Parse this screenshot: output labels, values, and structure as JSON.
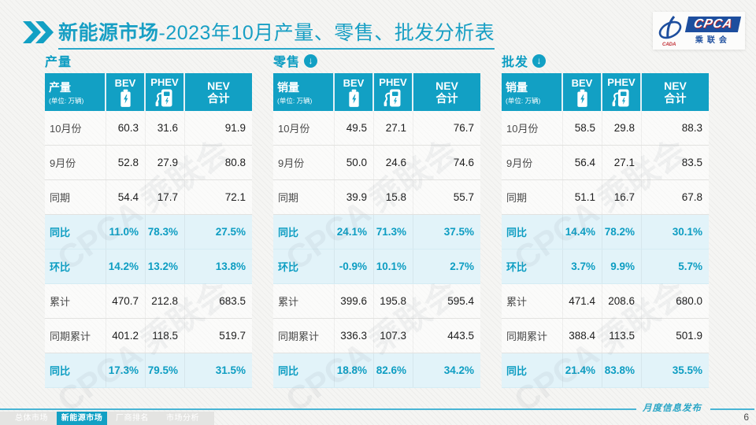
{
  "header": {
    "title_bold": "新能源市场",
    "title_rest": "-2023年10月产量、零售、批发分析表",
    "logo": {
      "cpca": "CPCA",
      "sub": "乘联会",
      "cada": "CADA"
    }
  },
  "table_columns": {
    "bev": "BEV",
    "phev": "PHEV",
    "nev_line1": "NEV",
    "nev_line2": "合计"
  },
  "unit": "(单位: 万辆)",
  "watermark": "CPCA 乘联会",
  "tables": [
    {
      "id": "production",
      "section": "产量",
      "has_arrow": false,
      "measure_label": "产量",
      "rows": [
        {
          "label": "10月份",
          "hl": false,
          "values": [
            "60.3",
            "31.6",
            "91.9"
          ]
        },
        {
          "label": "9月份",
          "hl": false,
          "values": [
            "52.8",
            "27.9",
            "80.8"
          ]
        },
        {
          "label": "同期",
          "hl": false,
          "values": [
            "54.4",
            "17.7",
            "72.1"
          ]
        },
        {
          "label": "同比",
          "hl": true,
          "values": [
            "11.0%",
            "78.3%",
            "27.5%"
          ]
        },
        {
          "label": "环比",
          "hl": true,
          "values": [
            "14.2%",
            "13.2%",
            "13.8%"
          ]
        },
        {
          "label": "累计",
          "hl": false,
          "values": [
            "470.7",
            "212.8",
            "683.5"
          ]
        },
        {
          "label": "同期累计",
          "hl": false,
          "values": [
            "401.2",
            "118.5",
            "519.7"
          ]
        },
        {
          "label": "同比",
          "hl": true,
          "values": [
            "17.3%",
            "79.5%",
            "31.5%"
          ]
        }
      ]
    },
    {
      "id": "retail",
      "section": "零售",
      "has_arrow": true,
      "measure_label": "销量",
      "rows": [
        {
          "label": "10月份",
          "hl": false,
          "values": [
            "49.5",
            "27.1",
            "76.7"
          ]
        },
        {
          "label": "9月份",
          "hl": false,
          "values": [
            "50.0",
            "24.6",
            "74.6"
          ]
        },
        {
          "label": "同期",
          "hl": false,
          "values": [
            "39.9",
            "15.8",
            "55.7"
          ]
        },
        {
          "label": "同比",
          "hl": true,
          "values": [
            "24.1%",
            "71.3%",
            "37.5%"
          ]
        },
        {
          "label": "环比",
          "hl": true,
          "values": [
            "-0.9%",
            "10.1%",
            "2.7%"
          ]
        },
        {
          "label": "累计",
          "hl": false,
          "values": [
            "399.6",
            "195.8",
            "595.4"
          ]
        },
        {
          "label": "同期累计",
          "hl": false,
          "values": [
            "336.3",
            "107.3",
            "443.5"
          ]
        },
        {
          "label": "同比",
          "hl": true,
          "values": [
            "18.8%",
            "82.6%",
            "34.2%"
          ]
        }
      ]
    },
    {
      "id": "wholesale",
      "section": "批发",
      "has_arrow": true,
      "measure_label": "销量",
      "rows": [
        {
          "label": "10月份",
          "hl": false,
          "values": [
            "58.5",
            "29.8",
            "88.3"
          ]
        },
        {
          "label": "9月份",
          "hl": false,
          "values": [
            "56.4",
            "27.1",
            "83.5"
          ]
        },
        {
          "label": "同期",
          "hl": false,
          "values": [
            "51.1",
            "16.7",
            "67.8"
          ]
        },
        {
          "label": "同比",
          "hl": true,
          "values": [
            "14.4%",
            "78.2%",
            "30.1%"
          ]
        },
        {
          "label": "环比",
          "hl": true,
          "values": [
            "3.7%",
            "9.9%",
            "5.7%"
          ]
        },
        {
          "label": "累计",
          "hl": false,
          "values": [
            "471.4",
            "208.6",
            "680.0"
          ]
        },
        {
          "label": "同期累计",
          "hl": false,
          "values": [
            "388.4",
            "113.5",
            "501.9"
          ]
        },
        {
          "label": "同比",
          "hl": true,
          "values": [
            "21.4%",
            "83.8%",
            "35.5%"
          ]
        }
      ]
    }
  ],
  "footer": {
    "tabs": [
      {
        "label": "总体市场",
        "active": false
      },
      {
        "label": "新能源市场",
        "active": true
      },
      {
        "label": "厂商排名",
        "active": false
      },
      {
        "label": "市场分析",
        "active": false
      }
    ],
    "note": "月度信息发布",
    "page": "6"
  }
}
